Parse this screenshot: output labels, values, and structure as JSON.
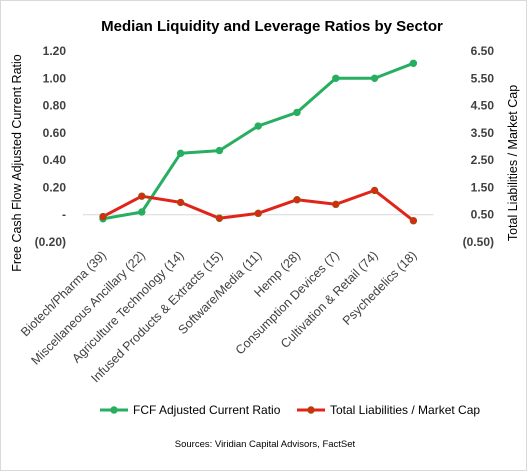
{
  "chart_data": {
    "type": "line",
    "title": "Median Liquidity and Leverage Ratios by Sector",
    "ylabel_left": "Free Cash Flow Adjusted Current Ratio",
    "ylabel_right": "Total Liabilities / Market Cap",
    "categories": [
      "Biotech/Pharma (39)",
      "Miscellaneous Ancillary (22)",
      "Agriculture Technology (14)",
      "Infused Products & Extracts (15)",
      "Software/Media (11)",
      "Hemp (28)",
      "Consumption Devices (7)",
      "Cultivation & Retail (74)",
      "Psychedelics (18)"
    ],
    "left_axis": {
      "ylim": [
        -0.2,
        1.2
      ],
      "ticks": [
        1.2,
        1.0,
        0.8,
        0.6,
        0.4,
        0.2,
        0.0,
        -0.2
      ],
      "tick_labels": [
        "1.20",
        "1.00",
        "0.80",
        "0.60",
        "0.40",
        "0.20",
        "-",
        "(0.20)"
      ]
    },
    "right_axis": {
      "ylim": [
        -0.5,
        6.5
      ],
      "ticks": [
        6.5,
        5.5,
        4.5,
        3.5,
        2.5,
        1.5,
        0.5,
        -0.5
      ],
      "tick_labels": [
        "6.50",
        "5.50",
        "4.50",
        "3.50",
        "2.50",
        "1.50",
        "0.50",
        "(0.50)"
      ]
    },
    "series": [
      {
        "name": "FCF Adjusted Current Ratio",
        "axis": "left",
        "color": "#27ae60",
        "values": [
          -0.03,
          0.02,
          0.45,
          0.47,
          0.65,
          0.75,
          1.0,
          1.0,
          1.11
        ]
      },
      {
        "name": "Total Liabilities / Market Cap",
        "axis": "right",
        "color": "#e2231a",
        "values": [
          0.43,
          1.18,
          0.95,
          0.37,
          0.55,
          1.05,
          0.88,
          1.39,
          0.28
        ]
      }
    ],
    "legend_position": "bottom",
    "grid": false
  },
  "source": "Sources: Viridian Capital Advisors, FactSet"
}
